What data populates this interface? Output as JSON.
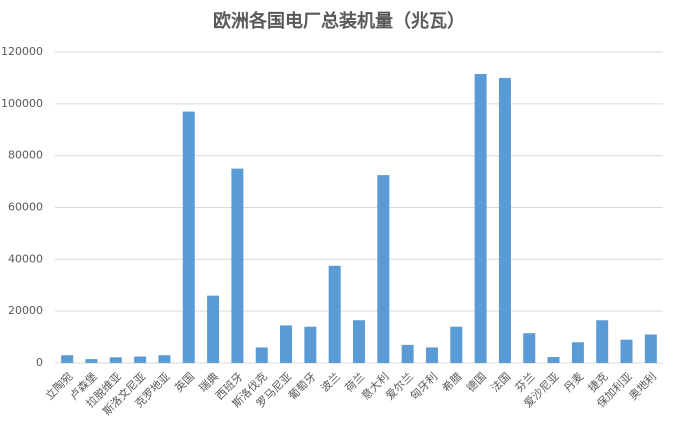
{
  "chart_data": {
    "type": "bar",
    "title": "欧洲各国电厂总装机量（兆瓦）",
    "categories": [
      "立陶宛",
      "卢森堡",
      "拉脱维亚",
      "斯洛文尼亚",
      "克罗地亚",
      "英国",
      "瑞典",
      "西班牙",
      "斯洛伐克",
      "罗马尼亚",
      "葡萄牙",
      "波兰",
      "荷兰",
      "意大利",
      "爱尔兰",
      "匈牙利",
      "希腊",
      "德国",
      "法国",
      "芬兰",
      "爱沙尼亚",
      "丹麦",
      "捷克",
      "保加利亚",
      "奥地利"
    ],
    "values": [
      3000,
      1500,
      2200,
      2500,
      3000,
      97000,
      26000,
      75000,
      6000,
      14500,
      14000,
      37500,
      16500,
      72500,
      7000,
      6000,
      14000,
      111500,
      110000,
      11500,
      2300,
      8000,
      16500,
      9000,
      11000
    ],
    "color": "#5b9bd5",
    "ylim": [
      0,
      120000
    ],
    "yticks": [
      0,
      20000,
      40000,
      60000,
      80000,
      100000,
      120000
    ],
    "grid": true
  }
}
